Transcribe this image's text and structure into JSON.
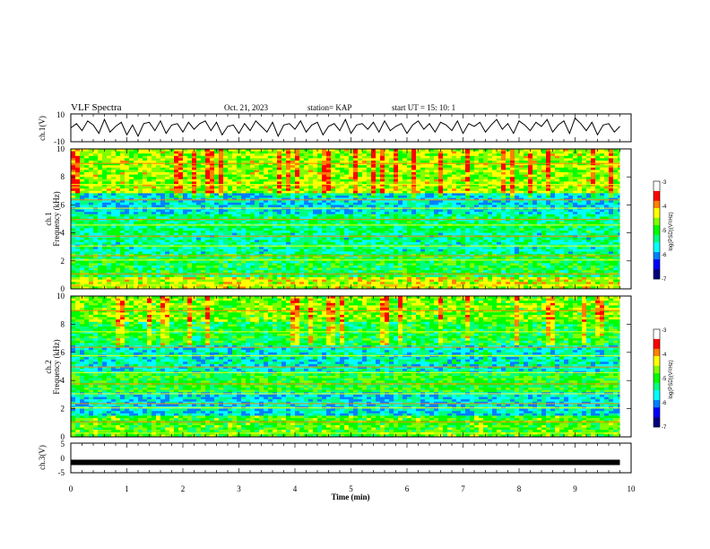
{
  "header": {
    "title": "VLF Spectra",
    "date": "Oct. 21, 2023",
    "station": "station= KAP",
    "start": "start  UT  =   15: 10: 1"
  },
  "colors": {
    "spectrogram_palette": [
      "#000080",
      "#0000ff",
      "#0080ff",
      "#00ffff",
      "#00ff80",
      "#00ff00",
      "#80ff00",
      "#ffff00",
      "#ff8000",
      "#ff0000",
      "#ffffff"
    ]
  },
  "chart_data": [
    {
      "type": "line",
      "ylabel": "ch.1(V)",
      "ylim": [
        -10,
        10
      ],
      "yticks": [
        "10",
        "-10"
      ],
      "xlim": [
        0,
        10
      ],
      "series_desc": "Waveform amplitude trace",
      "x": [
        0.0,
        0.1,
        0.2,
        0.3,
        0.4,
        0.5,
        0.6,
        0.7,
        0.8,
        0.9,
        1.0,
        1.1,
        1.2,
        1.3,
        1.4,
        1.5,
        1.6,
        1.7,
        1.8,
        1.9,
        2.0,
        2.1,
        2.2,
        2.3,
        2.4,
        2.5,
        2.6,
        2.7,
        2.8,
        2.9,
        3.0,
        3.1,
        3.2,
        3.3,
        3.4,
        3.5,
        3.6,
        3.7,
        3.8,
        3.9,
        4.0,
        4.1,
        4.2,
        4.3,
        4.4,
        4.5,
        4.6,
        4.7,
        4.8,
        4.9,
        5.0,
        5.1,
        5.2,
        5.3,
        5.4,
        5.5,
        5.6,
        5.7,
        5.8,
        5.9,
        6.0,
        6.1,
        6.2,
        6.3,
        6.4,
        6.5,
        6.6,
        6.7,
        6.8,
        6.9,
        7.0,
        7.1,
        7.2,
        7.3,
        7.4,
        7.5,
        7.6,
        7.7,
        7.8,
        7.9,
        8.0,
        8.1,
        8.2,
        8.3,
        8.4,
        8.5,
        8.6,
        8.7,
        8.8,
        8.9,
        9.0,
        9.1,
        9.2,
        9.3,
        9.4,
        9.5,
        9.6,
        9.7,
        9.8
      ],
      "y": [
        0,
        3,
        -2,
        5,
        2,
        -4,
        6,
        -3,
        1,
        4,
        -5,
        2,
        -6,
        3,
        4,
        -2,
        5,
        -4,
        2,
        3,
        -3,
        4,
        -1,
        3,
        5,
        -2,
        4,
        -5,
        1,
        2,
        -4,
        3,
        -2,
        5,
        1,
        -3,
        4,
        -6,
        2,
        3,
        -1,
        5,
        -3,
        2,
        4,
        -5,
        1,
        3,
        -2,
        6,
        -4,
        2,
        3,
        -1,
        4,
        -3,
        5,
        -2,
        1,
        3,
        -4,
        2,
        5,
        -1,
        3,
        -3,
        4,
        2,
        -2,
        5,
        -4,
        3,
        1,
        4,
        -3,
        2,
        6,
        -1,
        3,
        -4,
        5,
        2,
        -2,
        4,
        1,
        6,
        -3,
        2,
        5,
        -4,
        7,
        3,
        -2,
        4,
        -5,
        2,
        3,
        -3,
        1
      ]
    },
    {
      "type": "heatmap",
      "ylabel_line1": "ch.1",
      "ylabel_line2": "Frequency (kHz)",
      "ylim": [
        0,
        10
      ],
      "xlim": [
        0,
        10
      ],
      "yticks": [
        "0",
        "2",
        "4",
        "6",
        "8",
        "10"
      ],
      "colorbar": {
        "label": "log(PSD)(V²/Hz)",
        "ticks": [
          "-3",
          "-4",
          "-5",
          "-6",
          "-7"
        ],
        "range": [
          -7,
          -3
        ]
      }
    },
    {
      "type": "heatmap",
      "ylabel_line1": "ch.2",
      "ylabel_line2": "Frequency (kHz)",
      "ylim": [
        0,
        10
      ],
      "xlim": [
        0,
        10
      ],
      "yticks": [
        "0",
        "2",
        "4",
        "6",
        "8",
        "10"
      ],
      "colorbar": {
        "label": "log(PSD)(V²/Hz)",
        "ticks": [
          "-3",
          "-4",
          "-5",
          "-6",
          "-7"
        ],
        "range": [
          -7,
          -3
        ]
      }
    },
    {
      "type": "line",
      "ylabel": "ch.3(V)",
      "ylim": [
        -5,
        5
      ],
      "yticks": [
        "5",
        "0",
        "-5"
      ],
      "xlim": [
        0,
        10
      ],
      "xticks": [
        "0",
        "1",
        "2",
        "3",
        "4",
        "5",
        "6",
        "7",
        "8",
        "9",
        "10"
      ],
      "xlabel": "Time (min)",
      "series_desc": "Near-constant level",
      "x": [
        0.0,
        9.8
      ],
      "y": [
        -1.5,
        -1.5
      ]
    }
  ]
}
